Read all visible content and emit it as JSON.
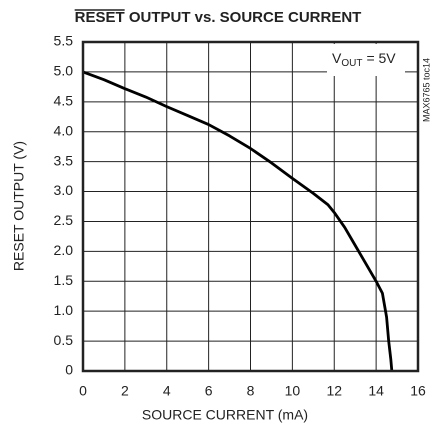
{
  "chart_data": {
    "type": "line",
    "title": "RESET OUTPUT vs. SOURCE CURRENT",
    "x_label": "SOURCE CURRENT (mA)",
    "y_label": "RESET OUTPUT (V)",
    "annotation": [
      "V",
      "OUT",
      "= 5V"
    ],
    "side_note": "MAX6765 toc14",
    "x": [
      0,
      1,
      2,
      3,
      4,
      5,
      6,
      7,
      8,
      9,
      10,
      11,
      11.7,
      12,
      12.5,
      13,
      13.5,
      14,
      14.3,
      14.5,
      14.6,
      14.7,
      14.75
    ],
    "values": [
      5.0,
      4.87,
      4.72,
      4.58,
      4.42,
      4.27,
      4.12,
      3.93,
      3.72,
      3.48,
      3.22,
      2.97,
      2.78,
      2.65,
      2.4,
      2.1,
      1.8,
      1.5,
      1.3,
      0.9,
      0.5,
      0.2,
      0
    ],
    "color": "#000000",
    "xlim": [
      0,
      16
    ],
    "xticks": [
      0,
      2,
      4,
      6,
      8,
      10,
      12,
      14,
      16
    ],
    "ylim": [
      0,
      5.5
    ],
    "yticks": [
      0,
      0.5,
      {
        "value": 1,
        "label": "1.0"
      },
      1.5,
      {
        "value": 2,
        "label": "2.0"
      },
      2.5,
      {
        "value": 3,
        "label": "3.0"
      },
      3.5,
      {
        "value": 4,
        "label": "4.0"
      },
      4.5,
      {
        "value": 5,
        "label": "5.0"
      },
      5.5
    ],
    "grid": true
  }
}
